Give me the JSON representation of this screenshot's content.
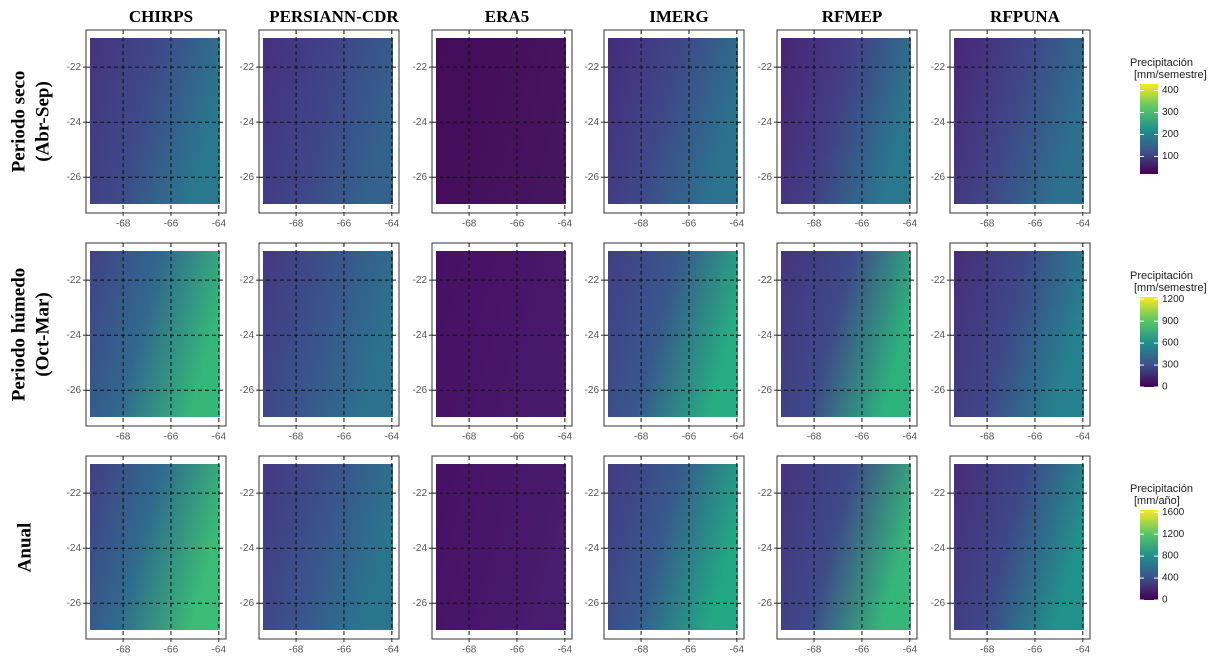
{
  "columns": [
    "CHIRPS",
    "PERSIANN-CDR",
    "ERA5",
    "IMERG",
    "RFMEP",
    "RFPUNA"
  ],
  "rows": [
    {
      "label_lines": [
        "Periodo seco",
        "(Abr-Sep)"
      ],
      "legend": {
        "title_lines": [
          "Precipitación",
          "[mm/semestre]"
        ],
        "ticks": [
          100,
          200,
          300,
          400
        ],
        "range": [
          20,
          430
        ]
      }
    },
    {
      "label_lines": [
        "Periodo húmedo",
        "(Oct-Mar)"
      ],
      "legend": {
        "title_lines": [
          "Precipitación",
          "[mm/semestre]"
        ],
        "ticks": [
          0,
          300,
          600,
          900,
          1200
        ],
        "range": [
          0,
          1230
        ]
      }
    },
    {
      "label_lines": [
        "Anual"
      ],
      "legend": {
        "title_lines": [
          "Precipitación",
          "[mm/año]"
        ],
        "ticks": [
          0,
          400,
          800,
          1200,
          1600
        ],
        "range": [
          0,
          1640
        ]
      }
    }
  ],
  "xticks": [
    -68,
    -66,
    -64
  ],
  "yticks": [
    -22,
    -24,
    -26
  ],
  "xlim": [
    -69.55,
    -63.7
  ],
  "ylim": [
    -27.3,
    -20.65
  ]
}
